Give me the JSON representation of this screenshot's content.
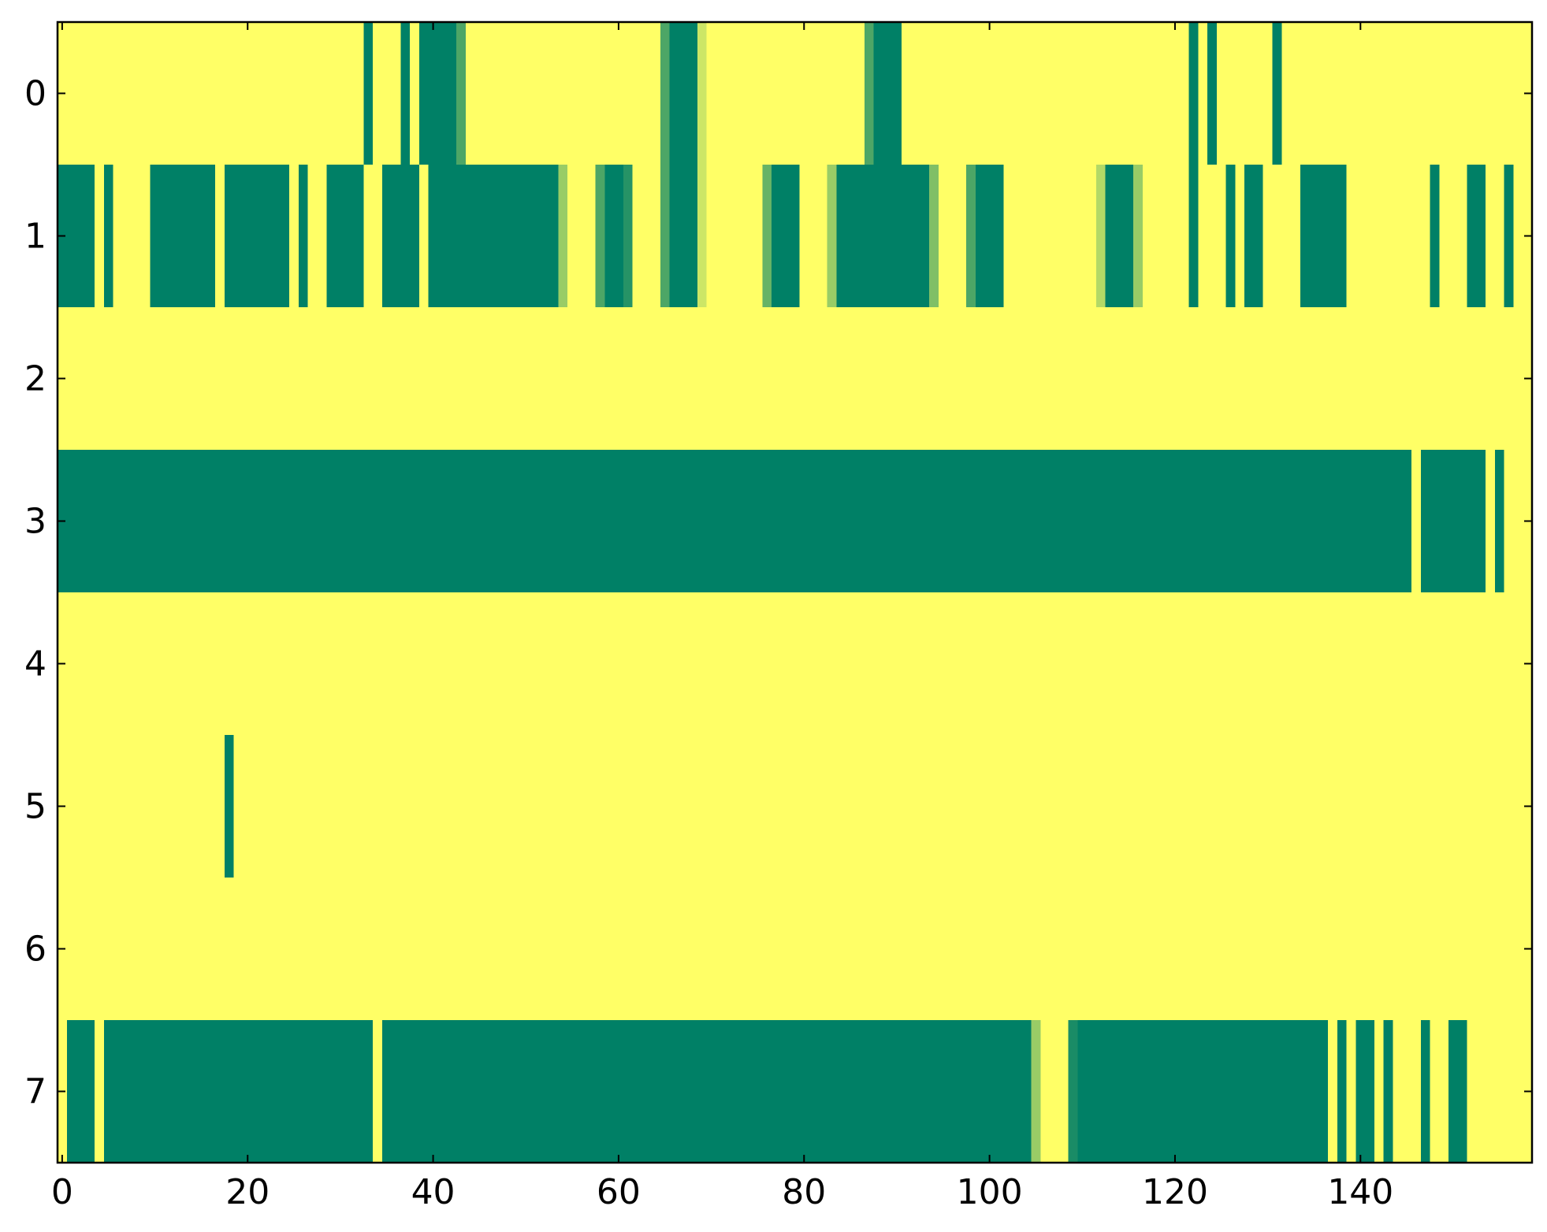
{
  "chart_data": {
    "type": "heatmap",
    "cmap": "summer",
    "xlim": [
      -0.5,
      158.5
    ],
    "ylim": [
      7.5,
      -0.5
    ],
    "xticks": [
      0,
      20,
      40,
      60,
      80,
      100,
      120,
      140
    ],
    "yticks": [
      0,
      1,
      2,
      3,
      4,
      5,
      6,
      7
    ],
    "z": [
      [
        1,
        1,
        1,
        1,
        1,
        1,
        1,
        1,
        1,
        1,
        1,
        1,
        1,
        1,
        1,
        1,
        1,
        1,
        1,
        1,
        1,
        1,
        1,
        1,
        1,
        1,
        1,
        1,
        1,
        1,
        1,
        1,
        1,
        0,
        1,
        1,
        1,
        0,
        1,
        0,
        0,
        0,
        0,
        0.3,
        1,
        1,
        1,
        1,
        1,
        1,
        1,
        1,
        1,
        1,
        1,
        1,
        1,
        1,
        1,
        1,
        1,
        1,
        1,
        1,
        1,
        0.3,
        0,
        0,
        0,
        0.8,
        1,
        1,
        1,
        1,
        1,
        1,
        1,
        1,
        1,
        1,
        1,
        1,
        1,
        1,
        1,
        1,
        1,
        0.3,
        0,
        0,
        0,
        1,
        1,
        1,
        1,
        1,
        1,
        1,
        1,
        1,
        1,
        1,
        1,
        1,
        1,
        1,
        1,
        1,
        1,
        1,
        1,
        1,
        1,
        1,
        1,
        1,
        1,
        1,
        1,
        1,
        1,
        1,
        0,
        1,
        0,
        1,
        1,
        1,
        1,
        1,
        1,
        0,
        1,
        1,
        1,
        1,
        1,
        1,
        1,
        1,
        1,
        1,
        1,
        1,
        1,
        1,
        1,
        1,
        1,
        1,
        1,
        1,
        1,
        1,
        1,
        1,
        1,
        1,
        1
      ],
      [
        0,
        0,
        0,
        0,
        1,
        0,
        1,
        1,
        1,
        1,
        0,
        0,
        0,
        0,
        0,
        0,
        0,
        1,
        0,
        0,
        0,
        0,
        0,
        0,
        0,
        1,
        0,
        1,
        1,
        0,
        0,
        0,
        0,
        1,
        1,
        0,
        0,
        0,
        0,
        1,
        0,
        0,
        0,
        0,
        0,
        0,
        0,
        0,
        0,
        0,
        0,
        0,
        0,
        0,
        0.6,
        1,
        1,
        1,
        0.3,
        0,
        0,
        0.15,
        1,
        1,
        1,
        0.3,
        0,
        0,
        0,
        0.8,
        1,
        1,
        1,
        1,
        1,
        1,
        0.4,
        0,
        0,
        0,
        1,
        1,
        1,
        0.6,
        0,
        0,
        0,
        0,
        0,
        0,
        0,
        0,
        0,
        0,
        0.5,
        1,
        1,
        1,
        0.3,
        0,
        0,
        0,
        1,
        1,
        1,
        1,
        1,
        1,
        1,
        1,
        1,
        1,
        0.7,
        0,
        0,
        0,
        0.6,
        1,
        1,
        1,
        1,
        1,
        0,
        1,
        1,
        1,
        0,
        1,
        0,
        0,
        1,
        1,
        1,
        1,
        0,
        0,
        0,
        0,
        0,
        1,
        1,
        1,
        1,
        1,
        1,
        1,
        1,
        1,
        0,
        1,
        1,
        1,
        0,
        0,
        1,
        1,
        0,
        1,
        1
      ],
      [
        1,
        1,
        1,
        1,
        1,
        1,
        1,
        1,
        1,
        1,
        1,
        1,
        1,
        1,
        1,
        1,
        1,
        1,
        1,
        1,
        1,
        1,
        1,
        1,
        1,
        1,
        1,
        1,
        1,
        1,
        1,
        1,
        1,
        1,
        1,
        1,
        1,
        1,
        1,
        1,
        1,
        1,
        1,
        1,
        1,
        1,
        1,
        1,
        1,
        1,
        1,
        1,
        1,
        1,
        1,
        1,
        1,
        1,
        1,
        1,
        1,
        1,
        1,
        1,
        1,
        1,
        1,
        1,
        1,
        1,
        1,
        1,
        1,
        1,
        1,
        1,
        1,
        1,
        1,
        1,
        1,
        1,
        1,
        1,
        1,
        1,
        1,
        1,
        1,
        1,
        1,
        1,
        1,
        1,
        1,
        1,
        1,
        1,
        1,
        1,
        1,
        1,
        1,
        1,
        1,
        1,
        1,
        1,
        1,
        1,
        1,
        1,
        1,
        1,
        1,
        1,
        1,
        1,
        1,
        1,
        1,
        1,
        1,
        1,
        1,
        1,
        1,
        1,
        1,
        1,
        1,
        1,
        1,
        1,
        1,
        1,
        1,
        1,
        1,
        1,
        1,
        1,
        1,
        1,
        1,
        1,
        1,
        1,
        1,
        1,
        1,
        1,
        1,
        1,
        1,
        1,
        1,
        1,
        1
      ],
      [
        0,
        0,
        0,
        0,
        0,
        0,
        0,
        0,
        0,
        0,
        0,
        0,
        0,
        0,
        0,
        0,
        0,
        0,
        0,
        0,
        0,
        0,
        0,
        0,
        0,
        0,
        0,
        0,
        0,
        0,
        0,
        0,
        0,
        0,
        0,
        0,
        0,
        0,
        0,
        0,
        0,
        0,
        0,
        0,
        0,
        0,
        0,
        0,
        0,
        0,
        0,
        0,
        0,
        0,
        0,
        0,
        0,
        0,
        0,
        0,
        0,
        0,
        0,
        0,
        0,
        0,
        0,
        0,
        0,
        0,
        0,
        0,
        0,
        0,
        0,
        0,
        0,
        0,
        0,
        0,
        0,
        0,
        0,
        0,
        0,
        0,
        0,
        0,
        0,
        0,
        0,
        0,
        0,
        0,
        0,
        0,
        0,
        0,
        0,
        0,
        0,
        0,
        0,
        0,
        0,
        0,
        0,
        0,
        0,
        0,
        0,
        0,
        0,
        0,
        0,
        0,
        0,
        0,
        0,
        0,
        0,
        0,
        0,
        0,
        0,
        0,
        0,
        0,
        0,
        0,
        0,
        0,
        0,
        0,
        0,
        0,
        0,
        0,
        0,
        0,
        0,
        0,
        0,
        0,
        0,
        0,
        1,
        0,
        0,
        0,
        0,
        0,
        0,
        0,
        1,
        0,
        1,
        1,
        1
      ],
      [
        1,
        1,
        1,
        1,
        1,
        1,
        1,
        1,
        1,
        1,
        1,
        1,
        1,
        1,
        1,
        1,
        1,
        1,
        1,
        1,
        1,
        1,
        1,
        1,
        1,
        1,
        1,
        1,
        1,
        1,
        1,
        1,
        1,
        1,
        1,
        1,
        1,
        1,
        1,
        1,
        1,
        1,
        1,
        1,
        1,
        1,
        1,
        1,
        1,
        1,
        1,
        1,
        1,
        1,
        1,
        1,
        1,
        1,
        1,
        1,
        1,
        1,
        1,
        1,
        1,
        1,
        1,
        1,
        1,
        1,
        1,
        1,
        1,
        1,
        1,
        1,
        1,
        1,
        1,
        1,
        1,
        1,
        1,
        1,
        1,
        1,
        1,
        1,
        1,
        1,
        1,
        1,
        1,
        1,
        1,
        1,
        1,
        1,
        1,
        1,
        1,
        1,
        1,
        1,
        1,
        1,
        1,
        1,
        1,
        1,
        1,
        1,
        1,
        1,
        1,
        1,
        1,
        1,
        1,
        1,
        1,
        1,
        1,
        1,
        1,
        1,
        1,
        1,
        1,
        1,
        1,
        1,
        1,
        1,
        1,
        1,
        1,
        1,
        1,
        1,
        1,
        1,
        1,
        1,
        1,
        1,
        1,
        1,
        1,
        1,
        1,
        1,
        1,
        1,
        1,
        1,
        1,
        1,
        1
      ],
      [
        1,
        1,
        1,
        1,
        1,
        1,
        1,
        1,
        1,
        1,
        1,
        1,
        1,
        1,
        1,
        1,
        1,
        1,
        0,
        1,
        1,
        1,
        1,
        1,
        1,
        1,
        1,
        1,
        1,
        1,
        1,
        1,
        1,
        1,
        1,
        1,
        1,
        1,
        1,
        1,
        1,
        1,
        1,
        1,
        1,
        1,
        1,
        1,
        1,
        1,
        1,
        1,
        1,
        1,
        1,
        1,
        1,
        1,
        1,
        1,
        1,
        1,
        1,
        1,
        1,
        1,
        1,
        1,
        1,
        1,
        1,
        1,
        1,
        1,
        1,
        1,
        1,
        1,
        1,
        1,
        1,
        1,
        1,
        1,
        1,
        1,
        1,
        1,
        1,
        1,
        1,
        1,
        1,
        1,
        1,
        1,
        1,
        1,
        1,
        1,
        1,
        1,
        1,
        1,
        1,
        1,
        1,
        1,
        1,
        1,
        1,
        1,
        1,
        1,
        1,
        1,
        1,
        1,
        1,
        1,
        1,
        1,
        1,
        1,
        1,
        1,
        1,
        1,
        1,
        1,
        1,
        1,
        1,
        1,
        1,
        1,
        1,
        1,
        1,
        1,
        1,
        1,
        1,
        1,
        1,
        1,
        1,
        1,
        1,
        1,
        1,
        1,
        1,
        1,
        1,
        1,
        1,
        1,
        1
      ],
      [
        1,
        1,
        1,
        1,
        1,
        1,
        1,
        1,
        1,
        1,
        1,
        1,
        1,
        1,
        1,
        1,
        1,
        1,
        1,
        1,
        1,
        1,
        1,
        1,
        1,
        1,
        1,
        1,
        1,
        1,
        1,
        1,
        1,
        1,
        1,
        1,
        1,
        1,
        1,
        1,
        1,
        1,
        1,
        1,
        1,
        1,
        1,
        1,
        1,
        1,
        1,
        1,
        1,
        1,
        1,
        1,
        1,
        1,
        1,
        1,
        1,
        1,
        1,
        1,
        1,
        1,
        1,
        1,
        1,
        1,
        1,
        1,
        1,
        1,
        1,
        1,
        1,
        1,
        1,
        1,
        1,
        1,
        1,
        1,
        1,
        1,
        1,
        1,
        1,
        1,
        1,
        1,
        1,
        1,
        1,
        1,
        1,
        1,
        1,
        1,
        1,
        1,
        1,
        1,
        1,
        1,
        1,
        1,
        1,
        1,
        1,
        1,
        1,
        1,
        1,
        1,
        1,
        1,
        1,
        1,
        1,
        1,
        1,
        1,
        1,
        1,
        1,
        1,
        1,
        1,
        1,
        1,
        1,
        1,
        1,
        1,
        1,
        1,
        1,
        1,
        1,
        1,
        1,
        1,
        1,
        1,
        1,
        1,
        1,
        1,
        1,
        1,
        1,
        1,
        1,
        1,
        1,
        1,
        1
      ],
      [
        1,
        0,
        0,
        0,
        1,
        0,
        0,
        0,
        0,
        0,
        0,
        0,
        0,
        0,
        0,
        0,
        0,
        0,
        0,
        0,
        0,
        0,
        0,
        0,
        0,
        0,
        0,
        0,
        0,
        0,
        0,
        0,
        0,
        0,
        1,
        0,
        0,
        0,
        0,
        0,
        0,
        0,
        0,
        0,
        0,
        0,
        0,
        0,
        0,
        0,
        0,
        0,
        0,
        0,
        0,
        0,
        0,
        0,
        0,
        0,
        0,
        0,
        0,
        0,
        0,
        0,
        0,
        0,
        0,
        0,
        0,
        0,
        0,
        0,
        0,
        0,
        0,
        0,
        0,
        0,
        0,
        0,
        0,
        0,
        0,
        0,
        0,
        0,
        0,
        0,
        0,
        0,
        0,
        0,
        0,
        0,
        0,
        0,
        0,
        0,
        0,
        0,
        0,
        0,
        0,
        0.6,
        1,
        1,
        1,
        0.1,
        0,
        0,
        0,
        0,
        0,
        0,
        0,
        0,
        0,
        0,
        0,
        0,
        0,
        0,
        0,
        0,
        0,
        0,
        0,
        0,
        0,
        0,
        0,
        0,
        0,
        0,
        0,
        1,
        0,
        1,
        0,
        0,
        1,
        0,
        1,
        1,
        1,
        0,
        1,
        1,
        0,
        0,
        1,
        1,
        1,
        1,
        1,
        1,
        1
      ]
    ]
  }
}
